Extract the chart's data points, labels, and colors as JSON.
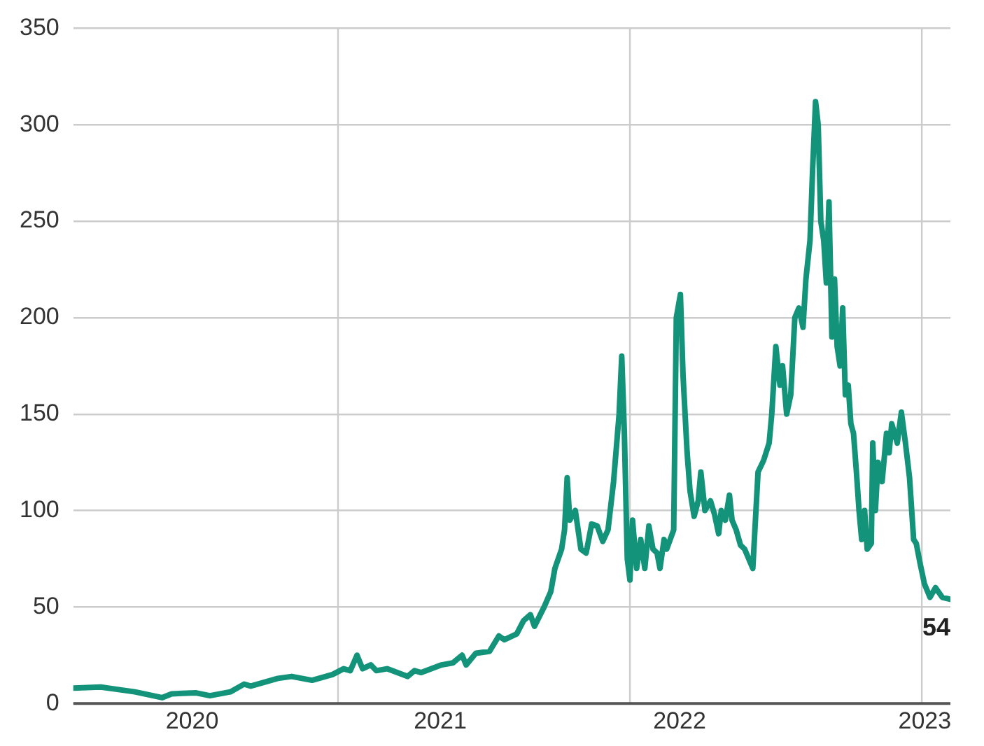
{
  "chart_data": {
    "type": "line",
    "x": [
      2020.093,
      2020.187,
      2020.257,
      2020.304,
      2020.397,
      2020.43,
      2020.514,
      2020.561,
      2020.631,
      2020.678,
      2020.701,
      2020.794,
      2020.841,
      2020.911,
      2020.981,
      2021.019,
      2021.042,
      2021.065,
      2021.084,
      2021.112,
      2021.131,
      2021.168,
      2021.238,
      2021.262,
      2021.285,
      2021.355,
      2021.393,
      2021.425,
      2021.439,
      2021.472,
      2021.519,
      2021.551,
      2021.57,
      2021.612,
      2021.636,
      2021.659,
      2021.673,
      2021.706,
      2021.729,
      2021.743,
      2021.766,
      2021.776,
      2021.785,
      2021.794,
      2021.813,
      2021.832,
      2021.85,
      2021.869,
      2021.888,
      2021.907,
      2021.925,
      2021.944,
      2021.963,
      2021.972,
      2021.981,
      2021.991,
      2022.0,
      2022.009,
      2022.023,
      2022.037,
      2022.051,
      2022.065,
      2022.079,
      2022.093,
      2022.103,
      2022.117,
      2022.126,
      2022.15,
      2022.159,
      2022.173,
      2022.182,
      2022.196,
      2022.206,
      2022.22,
      2022.234,
      2022.243,
      2022.257,
      2022.276,
      2022.29,
      2022.304,
      2022.313,
      2022.327,
      2022.341,
      2022.35,
      2022.364,
      2022.379,
      2022.393,
      2022.407,
      2022.421,
      2022.439,
      2022.458,
      2022.477,
      2022.486,
      2022.5,
      2022.514,
      2022.523,
      2022.537,
      2022.551,
      2022.565,
      2022.579,
      2022.593,
      2022.603,
      2022.617,
      2022.626,
      2022.636,
      2022.645,
      2022.654,
      2022.664,
      2022.673,
      2022.682,
      2022.692,
      2022.701,
      2022.71,
      2022.72,
      2022.729,
      2022.738,
      2022.748,
      2022.757,
      2022.766,
      2022.776,
      2022.785,
      2022.794,
      2022.804,
      2022.813,
      2022.827,
      2022.832,
      2022.841,
      2022.85,
      2022.864,
      2022.879,
      2022.888,
      2022.897,
      2022.916,
      2022.93,
      2022.944,
      2022.958,
      2022.972,
      2022.981,
      2022.995,
      2023.009,
      2023.028,
      2023.047,
      2023.07,
      2023.098
    ],
    "series": [
      {
        "color": "#12937a",
        "values": [
          8,
          8.5,
          7,
          6,
          3,
          5,
          5.5,
          4,
          6,
          10,
          9,
          13,
          14,
          12,
          15,
          18,
          17,
          25,
          18,
          20,
          17,
          18,
          14,
          17,
          16,
          20,
          21,
          25,
          20,
          26,
          27,
          35,
          33,
          36,
          43,
          46,
          40,
          50,
          58,
          70,
          80,
          90,
          117,
          95,
          100,
          80,
          78,
          93,
          92,
          84,
          90,
          115,
          150,
          180,
          140,
          75,
          64,
          95,
          70,
          85,
          70,
          92,
          80,
          78,
          70,
          85,
          80,
          90,
          200,
          212,
          170,
          130,
          110,
          97,
          105,
          120,
          100,
          105,
          98,
          88,
          100,
          95,
          108,
          95,
          90,
          82,
          80,
          75,
          70,
          120,
          126,
          135,
          150,
          185,
          165,
          175,
          150,
          160,
          200,
          205,
          195,
          220,
          240,
          277,
          312,
          300,
          250,
          240,
          218,
          260,
          190,
          220,
          185,
          175,
          205,
          160,
          165,
          145,
          140,
          120,
          100,
          85,
          100,
          80,
          83,
          135,
          100,
          125,
          115,
          140,
          130,
          145,
          135,
          151,
          135,
          117,
          85,
          83,
          72,
          62,
          55,
          60,
          55,
          54
        ]
      }
    ],
    "xlim": [
      2020.093,
      2023.098
    ],
    "xticks": [
      {
        "value": 2020.5,
        "label": "2020"
      },
      {
        "value": 2021.35,
        "label": "2021"
      },
      {
        "value": 2022.17,
        "label": "2022"
      },
      {
        "value": 2023.01,
        "label": "2023"
      }
    ],
    "ylim": [
      0,
      350
    ],
    "yticks": [
      0,
      50,
      100,
      150,
      200,
      250,
      300,
      350
    ],
    "grid": "y",
    "legend": false,
    "ref_lines": [
      {
        "axis": "x",
        "value": 2021,
        "color": "#cccccc"
      },
      {
        "axis": "x",
        "value": 2022,
        "color": "#cccccc"
      },
      {
        "axis": "x",
        "value": 2023,
        "color": "#cccccc"
      }
    ],
    "annotations": [
      {
        "text": "54",
        "x": 2023.098,
        "y": 54
      }
    ]
  }
}
